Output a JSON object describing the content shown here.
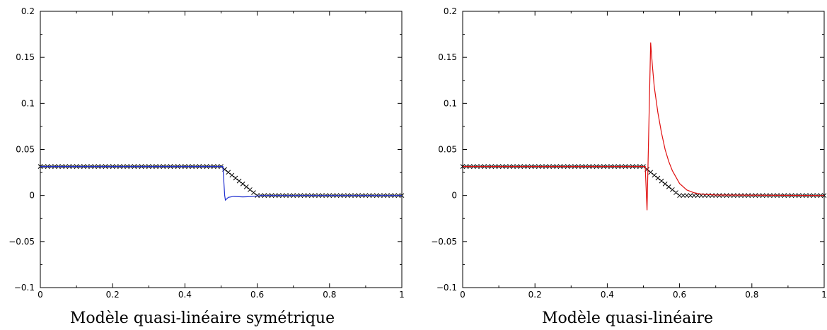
{
  "chart_data": [
    {
      "type": "line",
      "title": "Modèle quasi-linéaire symétrique",
      "xlabel": "",
      "ylabel": "",
      "xlim": [
        0,
        1
      ],
      "ylim": [
        -0.1,
        0.2
      ],
      "xticks": [
        0,
        0.2,
        0.4,
        0.6,
        0.8,
        1
      ],
      "xtick_labels": [
        "0",
        "0.2",
        "0.4",
        "0.6",
        "0.8",
        "1"
      ],
      "yticks": [
        -0.1,
        -0.05,
        0,
        0.05,
        0.1,
        0.15,
        0.2
      ],
      "ytick_labels": [
        "−0.1",
        "−0.05",
        "0",
        "0.05",
        "0.1",
        "0.15",
        "0.2"
      ],
      "grid": false,
      "legend": "none",
      "series": [
        {
          "style": "markers-x",
          "color": "#000000",
          "x": [
            0,
            0.5,
            0.6,
            1
          ],
          "y": [
            0.0315,
            0.0315,
            0,
            0
          ],
          "marker_count": 101
        },
        {
          "style": "line",
          "color": "#1f2fd0",
          "x": [
            0,
            0.5,
            0.505,
            0.51,
            0.512,
            0.52,
            0.535,
            0.56,
            0.58,
            0.6,
            0.61,
            1
          ],
          "y": [
            0.0315,
            0.0315,
            0.0315,
            0.0,
            -0.005,
            -0.002,
            -0.001,
            -0.0015,
            -0.0012,
            -0.0005,
            0,
            0
          ]
        }
      ]
    },
    {
      "type": "line",
      "title": "Modèle quasi-linéaire",
      "xlabel": "",
      "ylabel": "",
      "xlim": [
        0,
        1
      ],
      "ylim": [
        -0.1,
        0.2
      ],
      "xticks": [
        0,
        0.2,
        0.4,
        0.6,
        0.8,
        1
      ],
      "xtick_labels": [
        "0",
        "0.2",
        "0.4",
        "0.6",
        "0.8",
        "1"
      ],
      "yticks": [
        -0.1,
        -0.05,
        0,
        0.05,
        0.1,
        0.15,
        0.2
      ],
      "ytick_labels": [
        "−0.1",
        "−0.05",
        "0",
        "0.05",
        "0.1",
        "0.15",
        "0.2"
      ],
      "grid": false,
      "legend": "none",
      "series": [
        {
          "style": "markers-x",
          "color": "#000000",
          "x": [
            0,
            0.5,
            0.6,
            1
          ],
          "y": [
            0.0315,
            0.0315,
            0,
            0
          ],
          "marker_count": 101
        },
        {
          "style": "line",
          "color": "#e01010",
          "x": [
            0,
            0.5,
            0.505,
            0.51,
            0.52,
            0.525,
            0.53,
            0.54,
            0.55,
            0.56,
            0.57,
            0.58,
            0.6,
            0.62,
            0.64,
            0.66,
            0.7,
            1
          ],
          "y": [
            0.0315,
            0.0315,
            0.0315,
            -0.016,
            0.166,
            0.14,
            0.118,
            0.09,
            0.068,
            0.05,
            0.037,
            0.027,
            0.013,
            0.006,
            0.003,
            0.0015,
            0.0005,
            0
          ]
        }
      ]
    }
  ]
}
